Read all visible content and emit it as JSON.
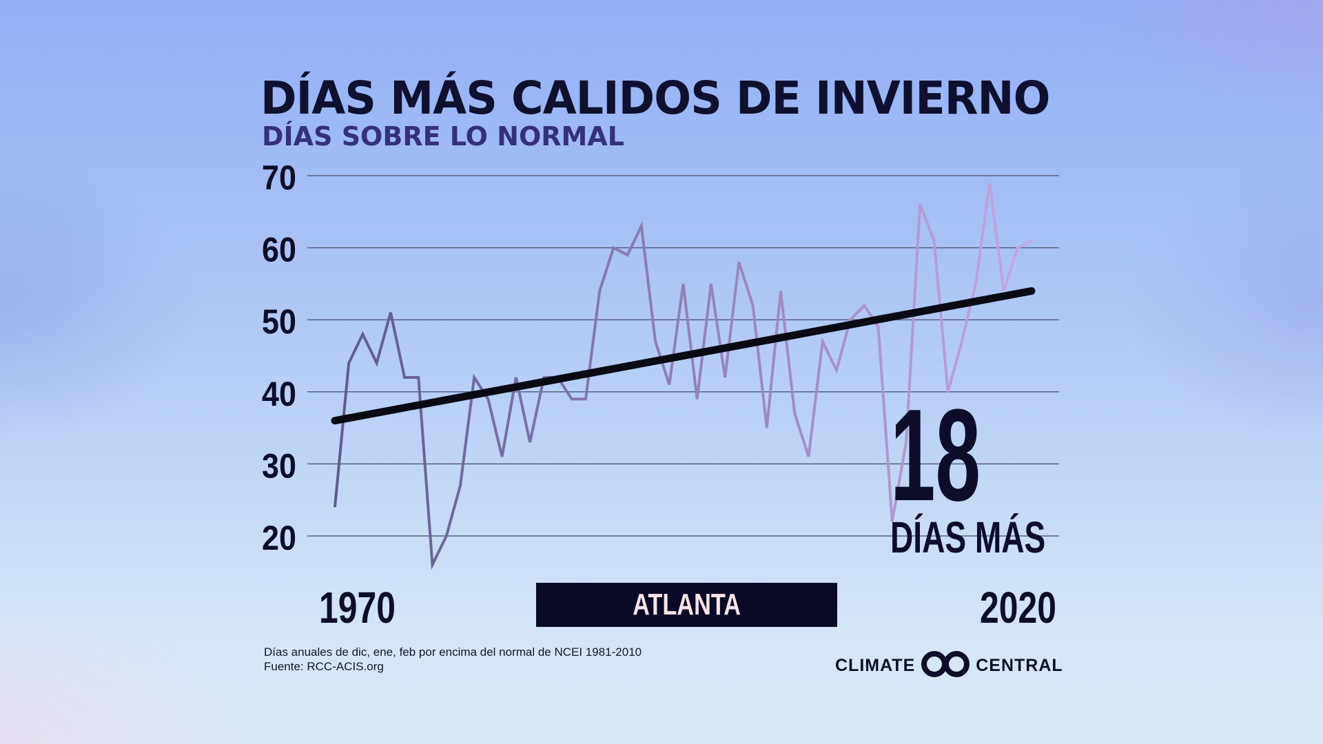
{
  "title": "DÍAS MÁS CALIDOS DE INVIERNO",
  "subtitle": "DÍAS SOBRE LO NORMAL",
  "highlight": {
    "number": "18",
    "label": "DÍAS MÁS"
  },
  "city": "ATLANTA",
  "footnote": {
    "line1": "Días anuales de dic, ene, feb por encima del normal de NCEI 1981-2010",
    "line2": "Fuente: RCC-ACIS.org"
  },
  "logo": {
    "left_word": "CLIMATE",
    "right_word": "CENTRAL"
  },
  "colors": {
    "title": "#0f1030",
    "subtitle": "#35307a",
    "line_start": "#5e5a8e",
    "line_end": "#c4a6e2",
    "trend": "#0a0a14",
    "grid": "#5a5f84",
    "city_box": "#0b0a26",
    "city_text": "#f6e3e6"
  },
  "chart_data": {
    "type": "line",
    "title": "DÍAS MÁS CALIDOS DE INVIERNO",
    "subtitle": "DÍAS SOBRE LO NORMAL",
    "xlabel": "",
    "ylabel": "",
    "x_tick_labels": [
      "1970",
      "2020"
    ],
    "y_ticks": [
      20,
      30,
      40,
      50,
      60,
      70
    ],
    "xlim": [
      1970,
      2020
    ],
    "ylim": [
      20,
      70
    ],
    "grid": true,
    "series": [
      {
        "x": [
          1970,
          1971,
          1972,
          1973,
          1974,
          1975,
          1976,
          1977,
          1978,
          1979,
          1980,
          1981,
          1982,
          1983,
          1984,
          1985,
          1986,
          1987,
          1988,
          1989,
          1990,
          1991,
          1992,
          1993,
          1994,
          1995,
          1996,
          1997,
          1998,
          1999,
          2000,
          2001,
          2002,
          2003,
          2004,
          2005,
          2006,
          2007,
          2008,
          2009,
          2010,
          2011,
          2012,
          2013,
          2014,
          2015,
          2016,
          2017,
          2018,
          2019,
          2020
        ],
        "values": [
          24,
          44,
          48,
          44,
          51,
          42,
          42,
          16,
          20,
          27,
          42,
          39,
          31,
          42,
          33,
          42,
          42,
          39,
          39,
          54,
          60,
          59,
          63,
          47,
          41,
          55,
          39,
          55,
          42,
          58,
          52,
          35,
          54,
          37,
          31,
          47,
          43,
          50,
          52,
          49,
          22,
          33,
          66,
          61,
          40,
          47,
          55,
          69,
          54,
          60,
          61
        ]
      }
    ],
    "trend": {
      "start": [
        1970,
        36
      ],
      "end": [
        2020,
        54
      ]
    },
    "annotation": "18 DÍAS MÁS"
  }
}
